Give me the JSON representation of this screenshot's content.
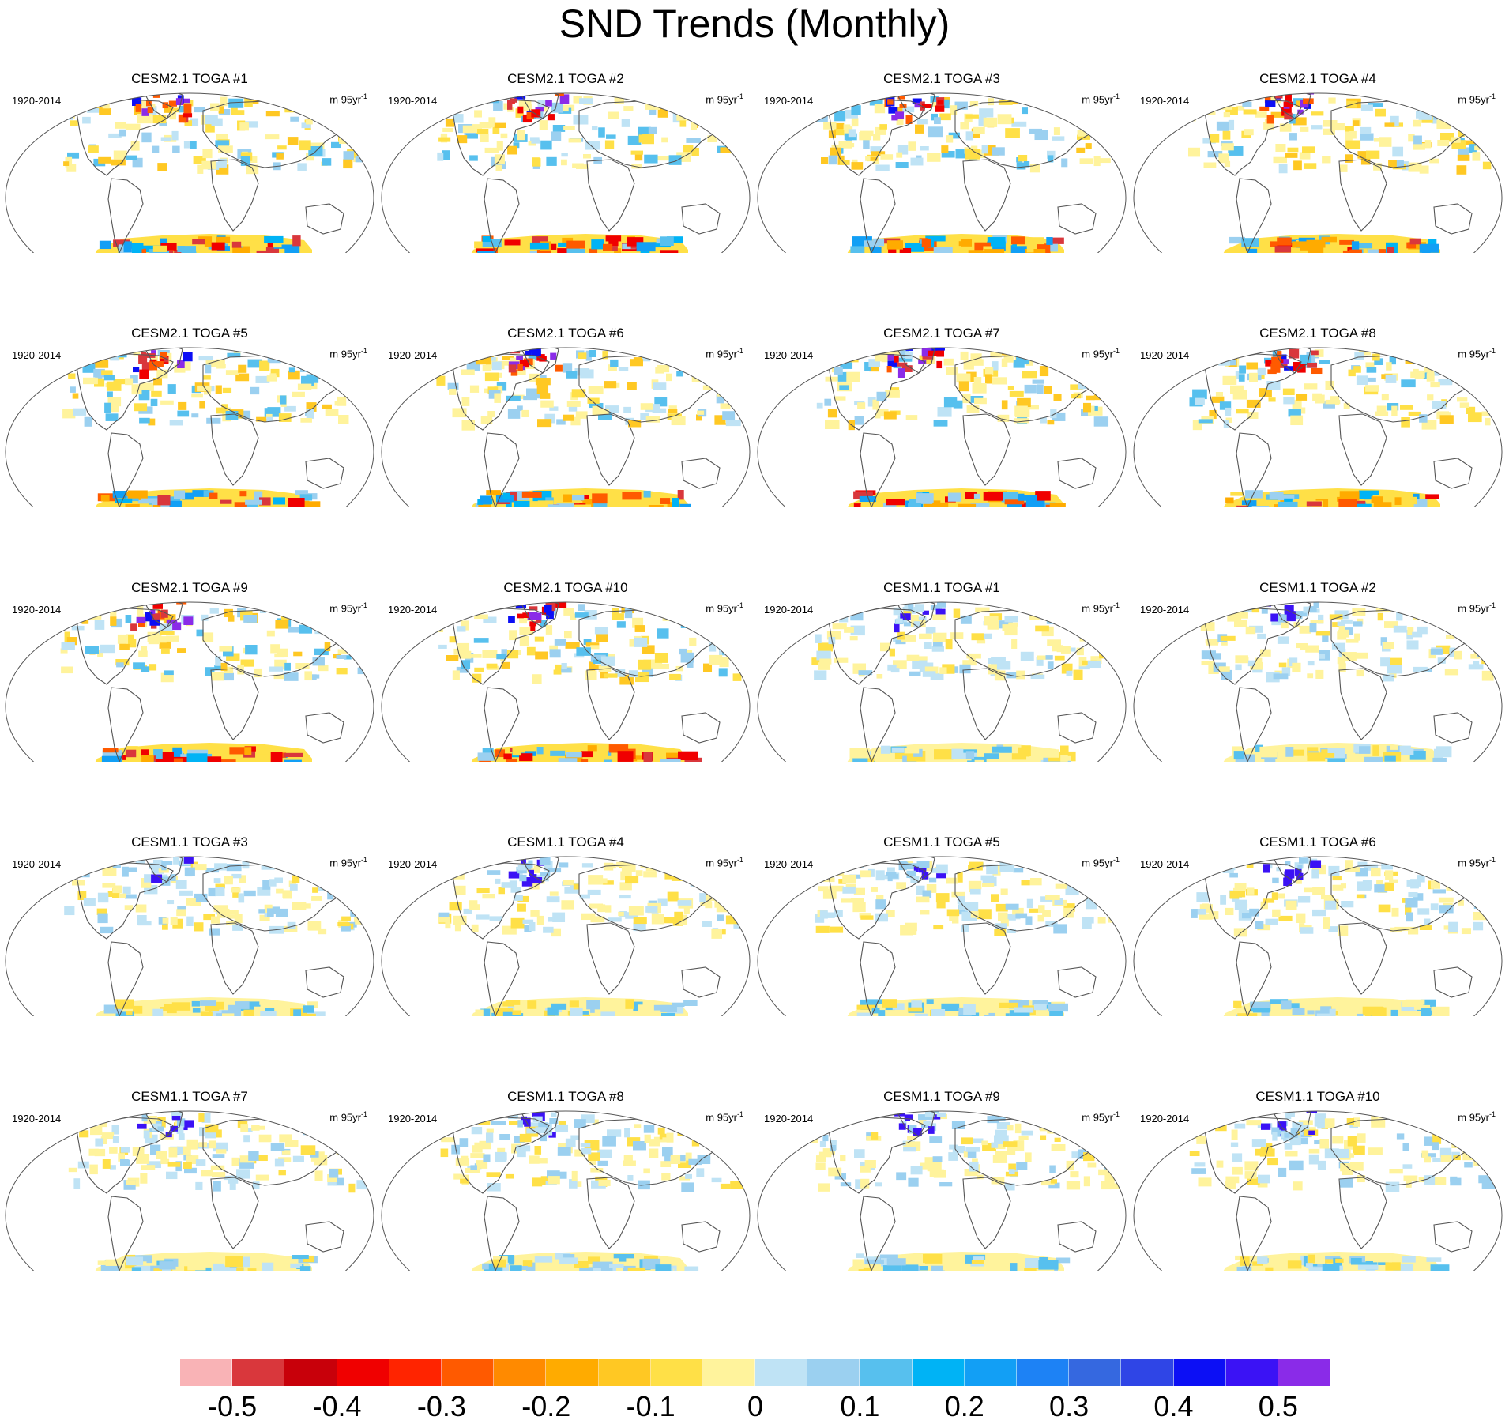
{
  "title": "SND Trends (Monthly)",
  "panels": [
    {
      "title": "CESM2.1 TOGA #1",
      "period": "1920-2014",
      "units_base": "m 95yr",
      "units_exp": "-1"
    },
    {
      "title": "CESM2.1 TOGA #2",
      "period": "1920-2014",
      "units_base": "m 95yr",
      "units_exp": "-1"
    },
    {
      "title": "CESM2.1 TOGA #3",
      "period": "1920-2014",
      "units_base": "m 95yr",
      "units_exp": "-1"
    },
    {
      "title": "CESM2.1 TOGA #4",
      "period": "1920-2014",
      "units_base": "m 95yr",
      "units_exp": "-1"
    },
    {
      "title": "CESM2.1 TOGA #5",
      "period": "1920-2014",
      "units_base": "m 95yr",
      "units_exp": "-1"
    },
    {
      "title": "CESM2.1 TOGA #6",
      "period": "1920-2014",
      "units_base": "m 95yr",
      "units_exp": "-1"
    },
    {
      "title": "CESM2.1 TOGA #7",
      "period": "1920-2014",
      "units_base": "m 95yr",
      "units_exp": "-1"
    },
    {
      "title": "CESM2.1 TOGA #8",
      "period": "1920-2014",
      "units_base": "m 95yr",
      "units_exp": "-1"
    },
    {
      "title": "CESM2.1 TOGA #9",
      "period": "1920-2014",
      "units_base": "m 95yr",
      "units_exp": "-1"
    },
    {
      "title": "CESM2.1 TOGA #10",
      "period": "1920-2014",
      "units_base": "m 95yr",
      "units_exp": "-1"
    },
    {
      "title": "CESM1.1 TOGA #1",
      "period": "1920-2014",
      "units_base": "m 95yr",
      "units_exp": "-1"
    },
    {
      "title": "CESM1.1 TOGA #2",
      "period": "1920-2014",
      "units_base": "m 95yr",
      "units_exp": "-1"
    },
    {
      "title": "CESM1.1 TOGA #3",
      "period": "1920-2014",
      "units_base": "m 95yr",
      "units_exp": "-1"
    },
    {
      "title": "CESM1.1 TOGA #4",
      "period": "1920-2014",
      "units_base": "m 95yr",
      "units_exp": "-1"
    },
    {
      "title": "CESM1.1 TOGA #5",
      "period": "1920-2014",
      "units_base": "m 95yr",
      "units_exp": "-1"
    },
    {
      "title": "CESM1.1 TOGA #6",
      "period": "1920-2014",
      "units_base": "m 95yr",
      "units_exp": "-1"
    },
    {
      "title": "CESM1.1 TOGA #7",
      "period": "1920-2014",
      "units_base": "m 95yr",
      "units_exp": "-1"
    },
    {
      "title": "CESM1.1 TOGA #8",
      "period": "1920-2014",
      "units_base": "m 95yr",
      "units_exp": "-1"
    },
    {
      "title": "CESM1.1 TOGA #9",
      "period": "1920-2014",
      "units_base": "m 95yr",
      "units_exp": "-1"
    },
    {
      "title": "CESM1.1 TOGA #10",
      "period": "1920-2014",
      "units_base": "m 95yr",
      "units_exp": "-1"
    }
  ],
  "colorbar": {
    "colors": [
      "#f9b3b6",
      "#d9373c",
      "#c8000a",
      "#f00000",
      "#ff2400",
      "#ff5a00",
      "#ff8a00",
      "#ffab00",
      "#ffc823",
      "#ffe047",
      "#fff39c",
      "#bfe3f5",
      "#9bd0f0",
      "#57c0ee",
      "#00b3f5",
      "#129ff5",
      "#1d82f5",
      "#3568e0",
      "#2f45e6",
      "#0c0ff5",
      "#3b12f5",
      "#8a2be8"
    ],
    "tick_values": [
      -0.5,
      -0.4,
      -0.3,
      -0.2,
      -0.1,
      0,
      0.1,
      0.2,
      0.3,
      0.4,
      0.5
    ],
    "tick_labels": [
      "-0.5",
      "-0.4",
      "-0.3",
      "-0.2",
      "-0.1",
      "0",
      "0.1",
      "0.2",
      "0.3",
      "0.4",
      "0.5"
    ]
  }
}
